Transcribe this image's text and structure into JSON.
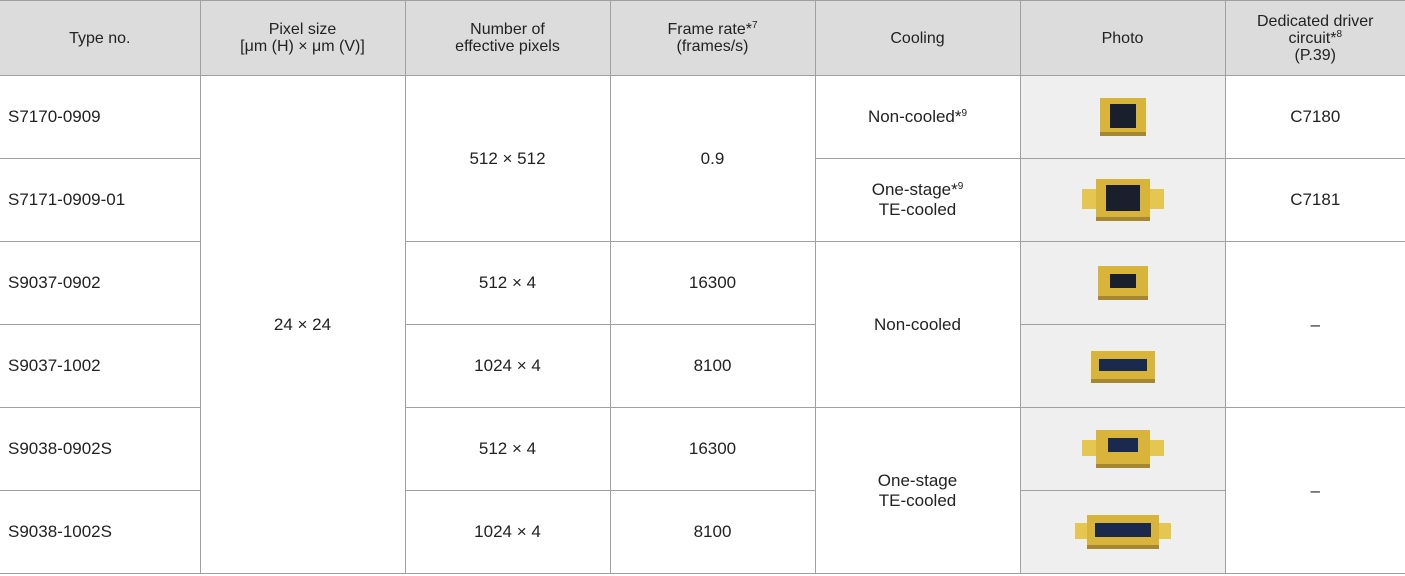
{
  "header": {
    "type_no": "Type no.",
    "pixel_size": [
      "Pixel size",
      "[μm (H) × μm (V)]"
    ],
    "pixels": [
      "Number of",
      "effective pixels"
    ],
    "frame_rate": {
      "text": "Frame rate*",
      "sup": "7",
      "unit": "(frames/s)"
    },
    "cooling": "Cooling",
    "photo": "Photo",
    "driver": {
      "text": [
        "Dedicated driver",
        "circuit*"
      ],
      "sup": "8",
      "ref": "(P.39)"
    }
  },
  "type_numbers": [
    "S7170-0909",
    "S7171-0909-01",
    "S9037-0902",
    "S9037-1002",
    "S9038-0902S",
    "S9038-1002S"
  ],
  "pixel_size": "24 × 24",
  "pixels": [
    "512 × 512",
    "512 × 4",
    "1024 × 4",
    "512 × 4",
    "1024 × 4"
  ],
  "frame_rates": [
    0.9,
    16300,
    8100,
    16300,
    8100
  ],
  "cooling": [
    {
      "text": "Non-cooled*",
      "sup": "9"
    },
    {
      "text": [
        "One-stage*",
        "TE-cooled"
      ],
      "sup": "9"
    },
    "Non-cooled",
    [
      "One-stage",
      "TE-cooled"
    ]
  ],
  "drivers": [
    "C7180",
    "C7181",
    "–",
    "–"
  ]
}
